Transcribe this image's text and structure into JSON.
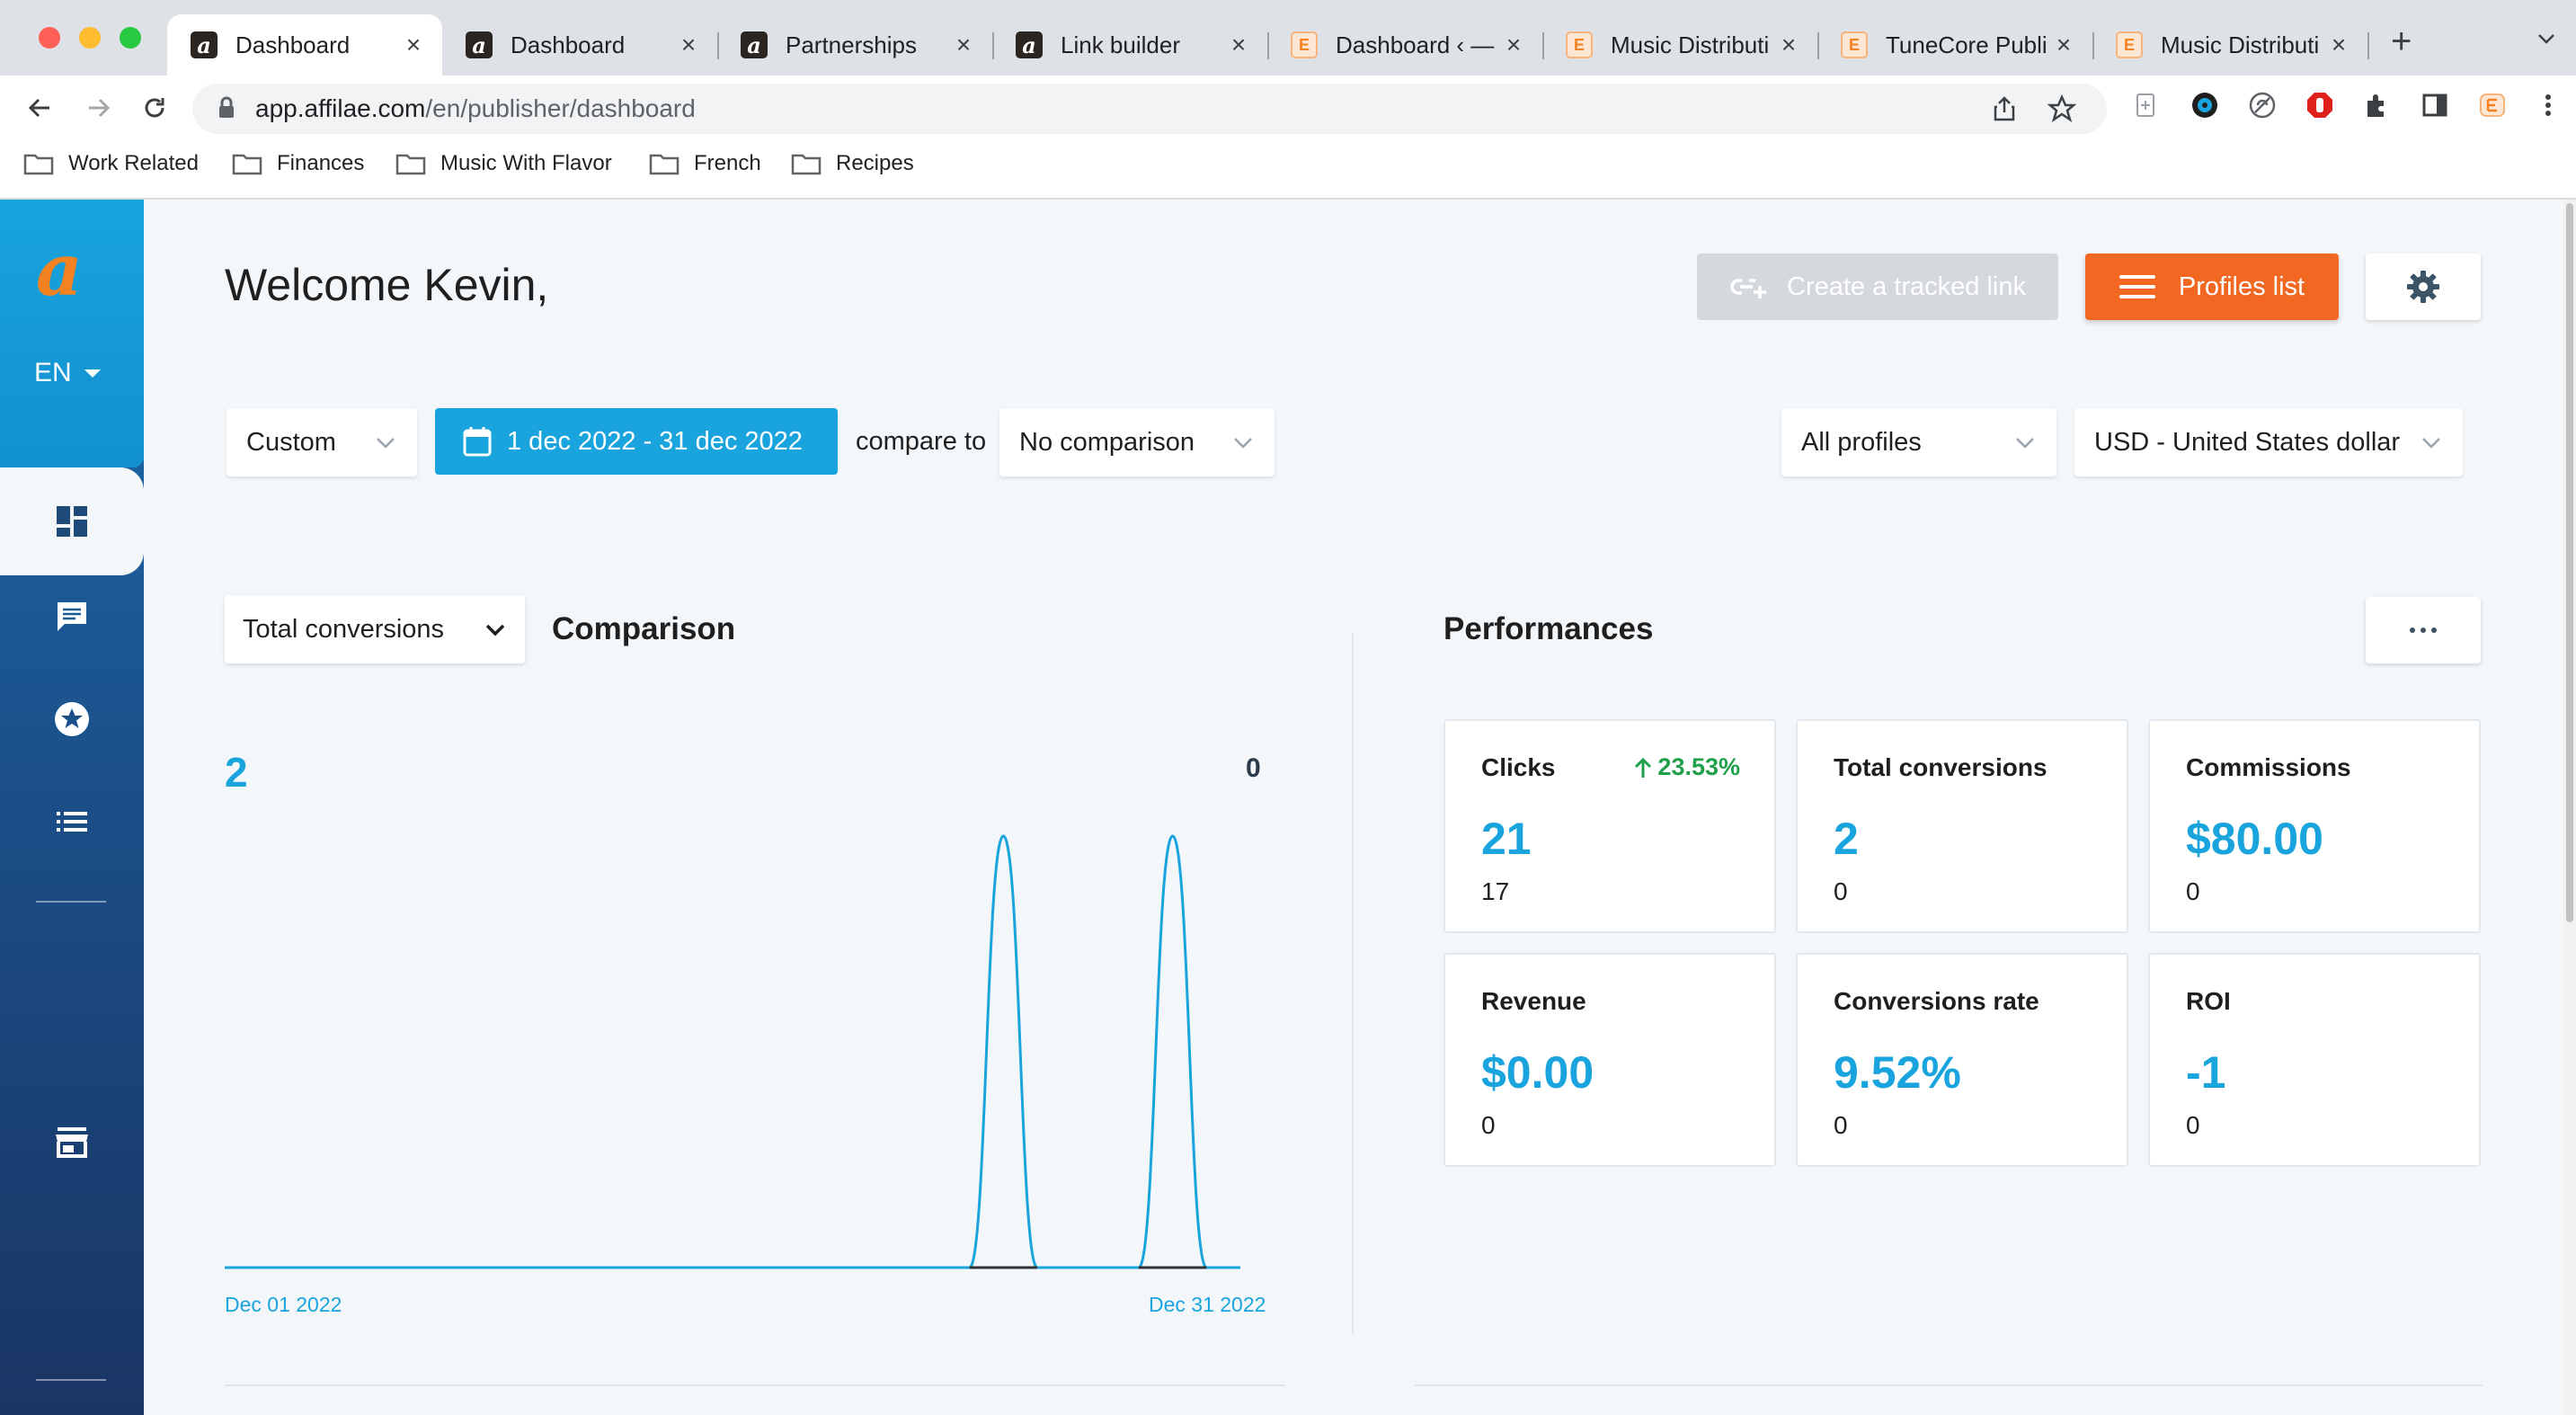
{
  "browser": {
    "tabs": [
      {
        "title": "Dashboard",
        "favicon": "affilae-icon",
        "active": true
      },
      {
        "title": "Dashboard",
        "favicon": "affilae-icon",
        "active": false
      },
      {
        "title": "Partnerships",
        "favicon": "affilae-icon",
        "active": false
      },
      {
        "title": "Link builder",
        "favicon": "affilae-icon",
        "active": false
      },
      {
        "title": "Dashboard ‹ —",
        "favicon": "tunecore-icon",
        "active": false
      },
      {
        "title": "Music Distributi",
        "favicon": "tunecore-icon",
        "active": false
      },
      {
        "title": "TuneCore Publi",
        "favicon": "tunecore-icon",
        "active": false
      },
      {
        "title": "Music Distributi",
        "favicon": "tunecore-icon",
        "active": false
      }
    ],
    "url_host": "app.affilae.com",
    "url_path": "/en/publisher/dashboard",
    "bookmarks": [
      "Work Related",
      "Finances",
      "Music With Flavor",
      "French",
      "Recipes"
    ]
  },
  "sidebar": {
    "logo": "a",
    "language": "EN",
    "items": [
      "dashboard-icon",
      "messages-icon",
      "favorites-icon",
      "list-icon",
      "store-icon"
    ]
  },
  "header": {
    "welcome": "Welcome Kevin,",
    "create_link_label": "Create a tracked link",
    "profiles_list_label": "Profiles list"
  },
  "filters": {
    "period": "Custom",
    "date_range": "1 dec 2022 - 31 dec 2022",
    "compare_to_label": "compare to",
    "comparison": "No comparison",
    "profiles": "All profiles",
    "currency": "USD - United States dollar"
  },
  "comparison_panel": {
    "metric": "Total conversions",
    "title": "Comparison",
    "current_total": "2",
    "previous_total": "0",
    "x_start_label": "Dec 01 2022",
    "x_end_label": "Dec 31 2022"
  },
  "chart_data": {
    "type": "line",
    "x": [
      "Dec 01 2022",
      "Dec 02 2022",
      "Dec 03 2022",
      "Dec 04 2022",
      "Dec 05 2022",
      "Dec 06 2022",
      "Dec 07 2022",
      "Dec 08 2022",
      "Dec 09 2022",
      "Dec 10 2022",
      "Dec 11 2022",
      "Dec 12 2022",
      "Dec 13 2022",
      "Dec 14 2022",
      "Dec 15 2022",
      "Dec 16 2022",
      "Dec 17 2022",
      "Dec 18 2022",
      "Dec 19 2022",
      "Dec 20 2022",
      "Dec 21 2022",
      "Dec 22 2022",
      "Dec 23 2022",
      "Dec 24 2022",
      "Dec 25 2022",
      "Dec 26 2022",
      "Dec 27 2022",
      "Dec 28 2022",
      "Dec 29 2022",
      "Dec 30 2022",
      "Dec 31 2022"
    ],
    "series": [
      {
        "values": [
          0,
          0,
          0,
          0,
          0,
          0,
          0,
          0,
          0,
          0,
          0,
          0,
          0,
          0,
          0,
          0,
          0,
          0,
          0,
          0,
          0,
          0,
          0,
          1,
          0,
          0,
          0,
          0,
          1,
          0,
          0
        ],
        "color": "#1aa4de"
      },
      {
        "values": [
          0,
          0,
          0,
          0,
          0,
          0,
          0,
          0,
          0,
          0,
          0,
          0,
          0,
          0,
          0,
          0,
          0,
          0,
          0,
          0,
          0,
          0,
          0,
          0,
          0,
          0,
          0,
          0,
          0,
          0,
          0
        ],
        "color": "#333333"
      }
    ],
    "ylim": [
      0,
      1
    ],
    "grid": false,
    "title": "",
    "xlabel": "",
    "ylabel": ""
  },
  "performances": {
    "title": "Performances",
    "cards": [
      {
        "label": "Clicks",
        "value": "21",
        "previous": "17",
        "trend": "23.53%"
      },
      {
        "label": "Total conversions",
        "value": "2",
        "previous": "0",
        "trend": ""
      },
      {
        "label": "Commissions",
        "value": "$80.00",
        "previous": "0",
        "trend": ""
      },
      {
        "label": "Revenue",
        "value": "$0.00",
        "previous": "0",
        "trend": ""
      },
      {
        "label": "Conversions rate",
        "value": "9.52%",
        "previous": "0",
        "trend": ""
      },
      {
        "label": "ROI",
        "value": "-1",
        "previous": "0",
        "trend": ""
      }
    ]
  },
  "colors": {
    "accent": "#1aa4de",
    "primary_button": "#f26722",
    "disabled_button": "#d5d9de",
    "trend_up": "#21a04b"
  }
}
